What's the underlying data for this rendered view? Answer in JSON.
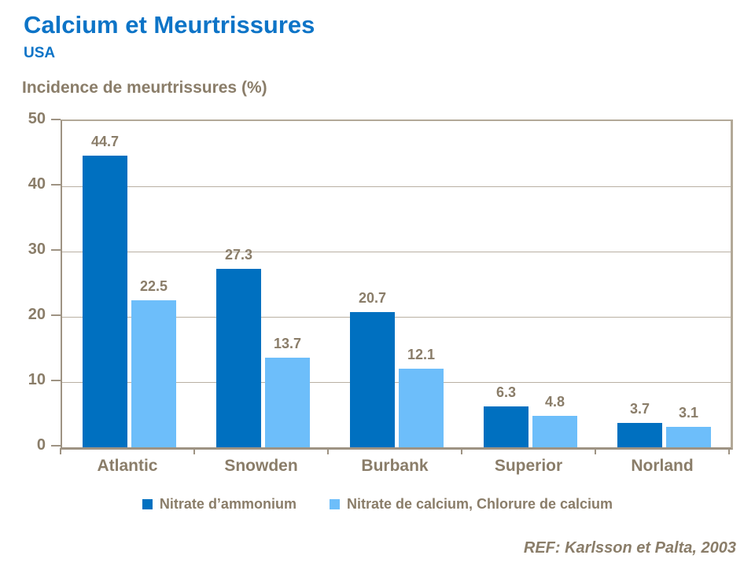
{
  "header": {
    "title": "Calcium et Meurtrissures",
    "subtitle": "USA"
  },
  "chart_data": {
    "type": "bar",
    "title": "Calcium et Meurtrissures",
    "subtitle": "USA",
    "axis_title": "Incidence de meurtrissures (%)",
    "categories": [
      "Atlantic",
      "Snowden",
      "Burbank",
      "Superior",
      "Norland"
    ],
    "series": [
      {
        "name": "Nitrate d’ammonium",
        "color": "#0070c0",
        "values": [
          44.7,
          27.3,
          20.7,
          6.3,
          3.7
        ]
      },
      {
        "name": "Nitrate de calcium, Chlorure de calcium",
        "color": "#6dbefa",
        "values": [
          22.5,
          13.7,
          12.1,
          4.8,
          3.1
        ]
      }
    ],
    "ylim": [
      0,
      50
    ],
    "ytick_step": 10,
    "grid": true,
    "legend_position": "bottom",
    "data_labels": true
  },
  "footer": {
    "reference": "REF: Karlsson et Palta, 2003"
  },
  "colors": {
    "title_blue": "#0d74c7",
    "text_brown": "#8a7d69",
    "gridline": "#b9b0a3",
    "axis": "#9e9383",
    "frame": "#b3a998"
  }
}
